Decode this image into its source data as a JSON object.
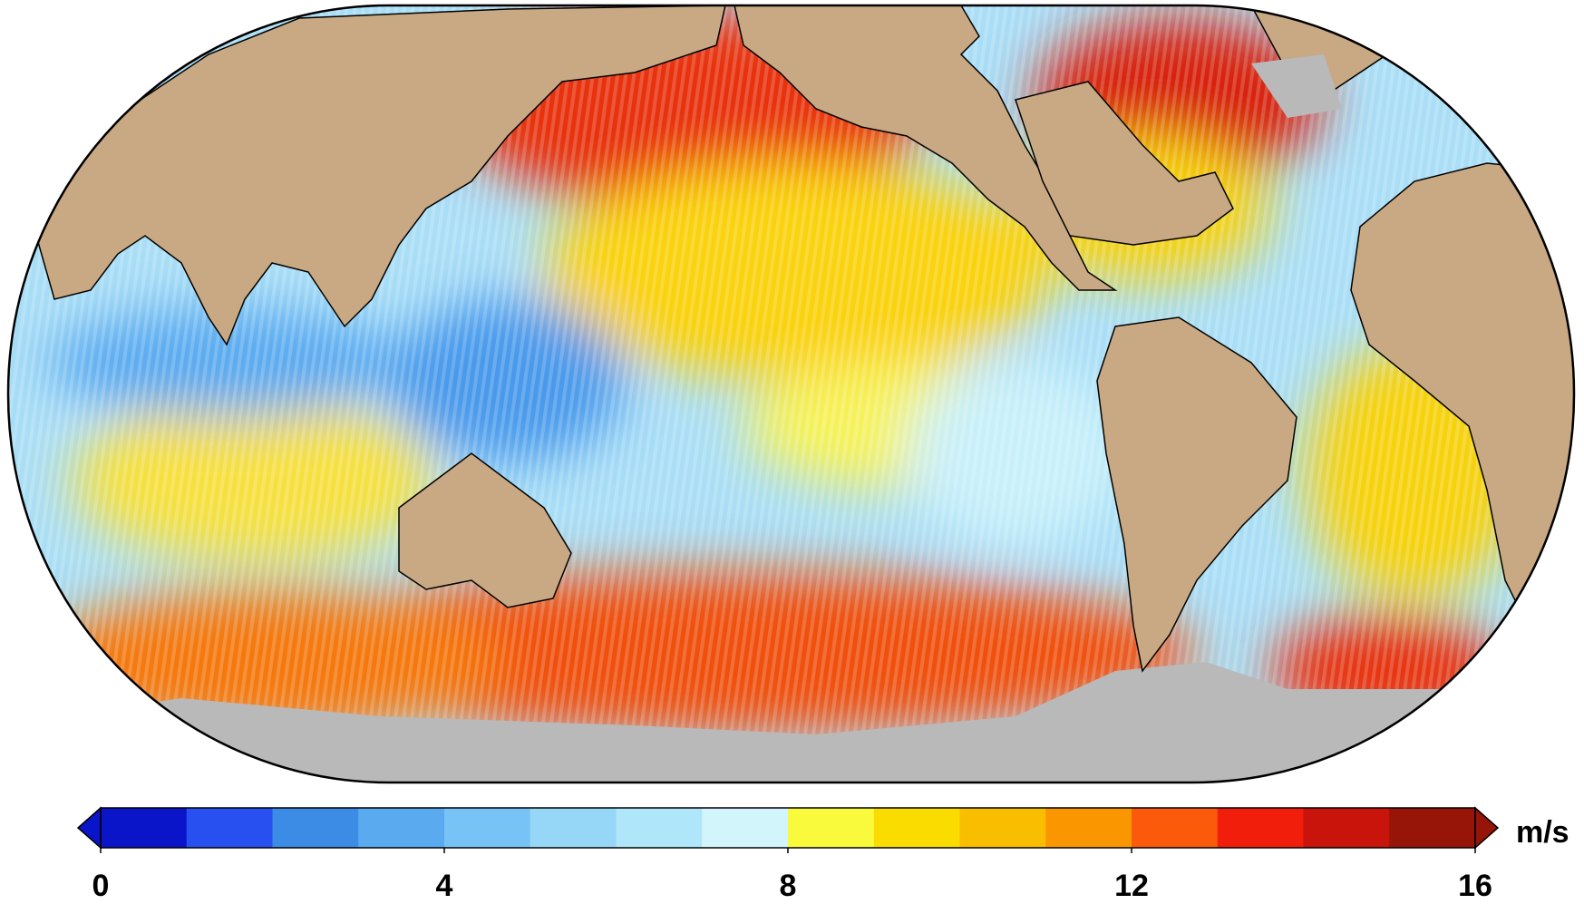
{
  "colorbar": {
    "range": [
      0,
      16
    ],
    "ticks": [
      0,
      4,
      8,
      12,
      16
    ],
    "unit": "m/s",
    "colors": [
      "#0a14c8",
      "#2850f0",
      "#3c8ce6",
      "#5aaaf0",
      "#78c3f5",
      "#96d7f8",
      "#b0e6fa",
      "#d2f5fc",
      "#fafa3c",
      "#fadc00",
      "#fabe00",
      "#fa9600",
      "#fa5a0a",
      "#f01e0a",
      "#c8140a",
      "#961408"
    ]
  }
}
